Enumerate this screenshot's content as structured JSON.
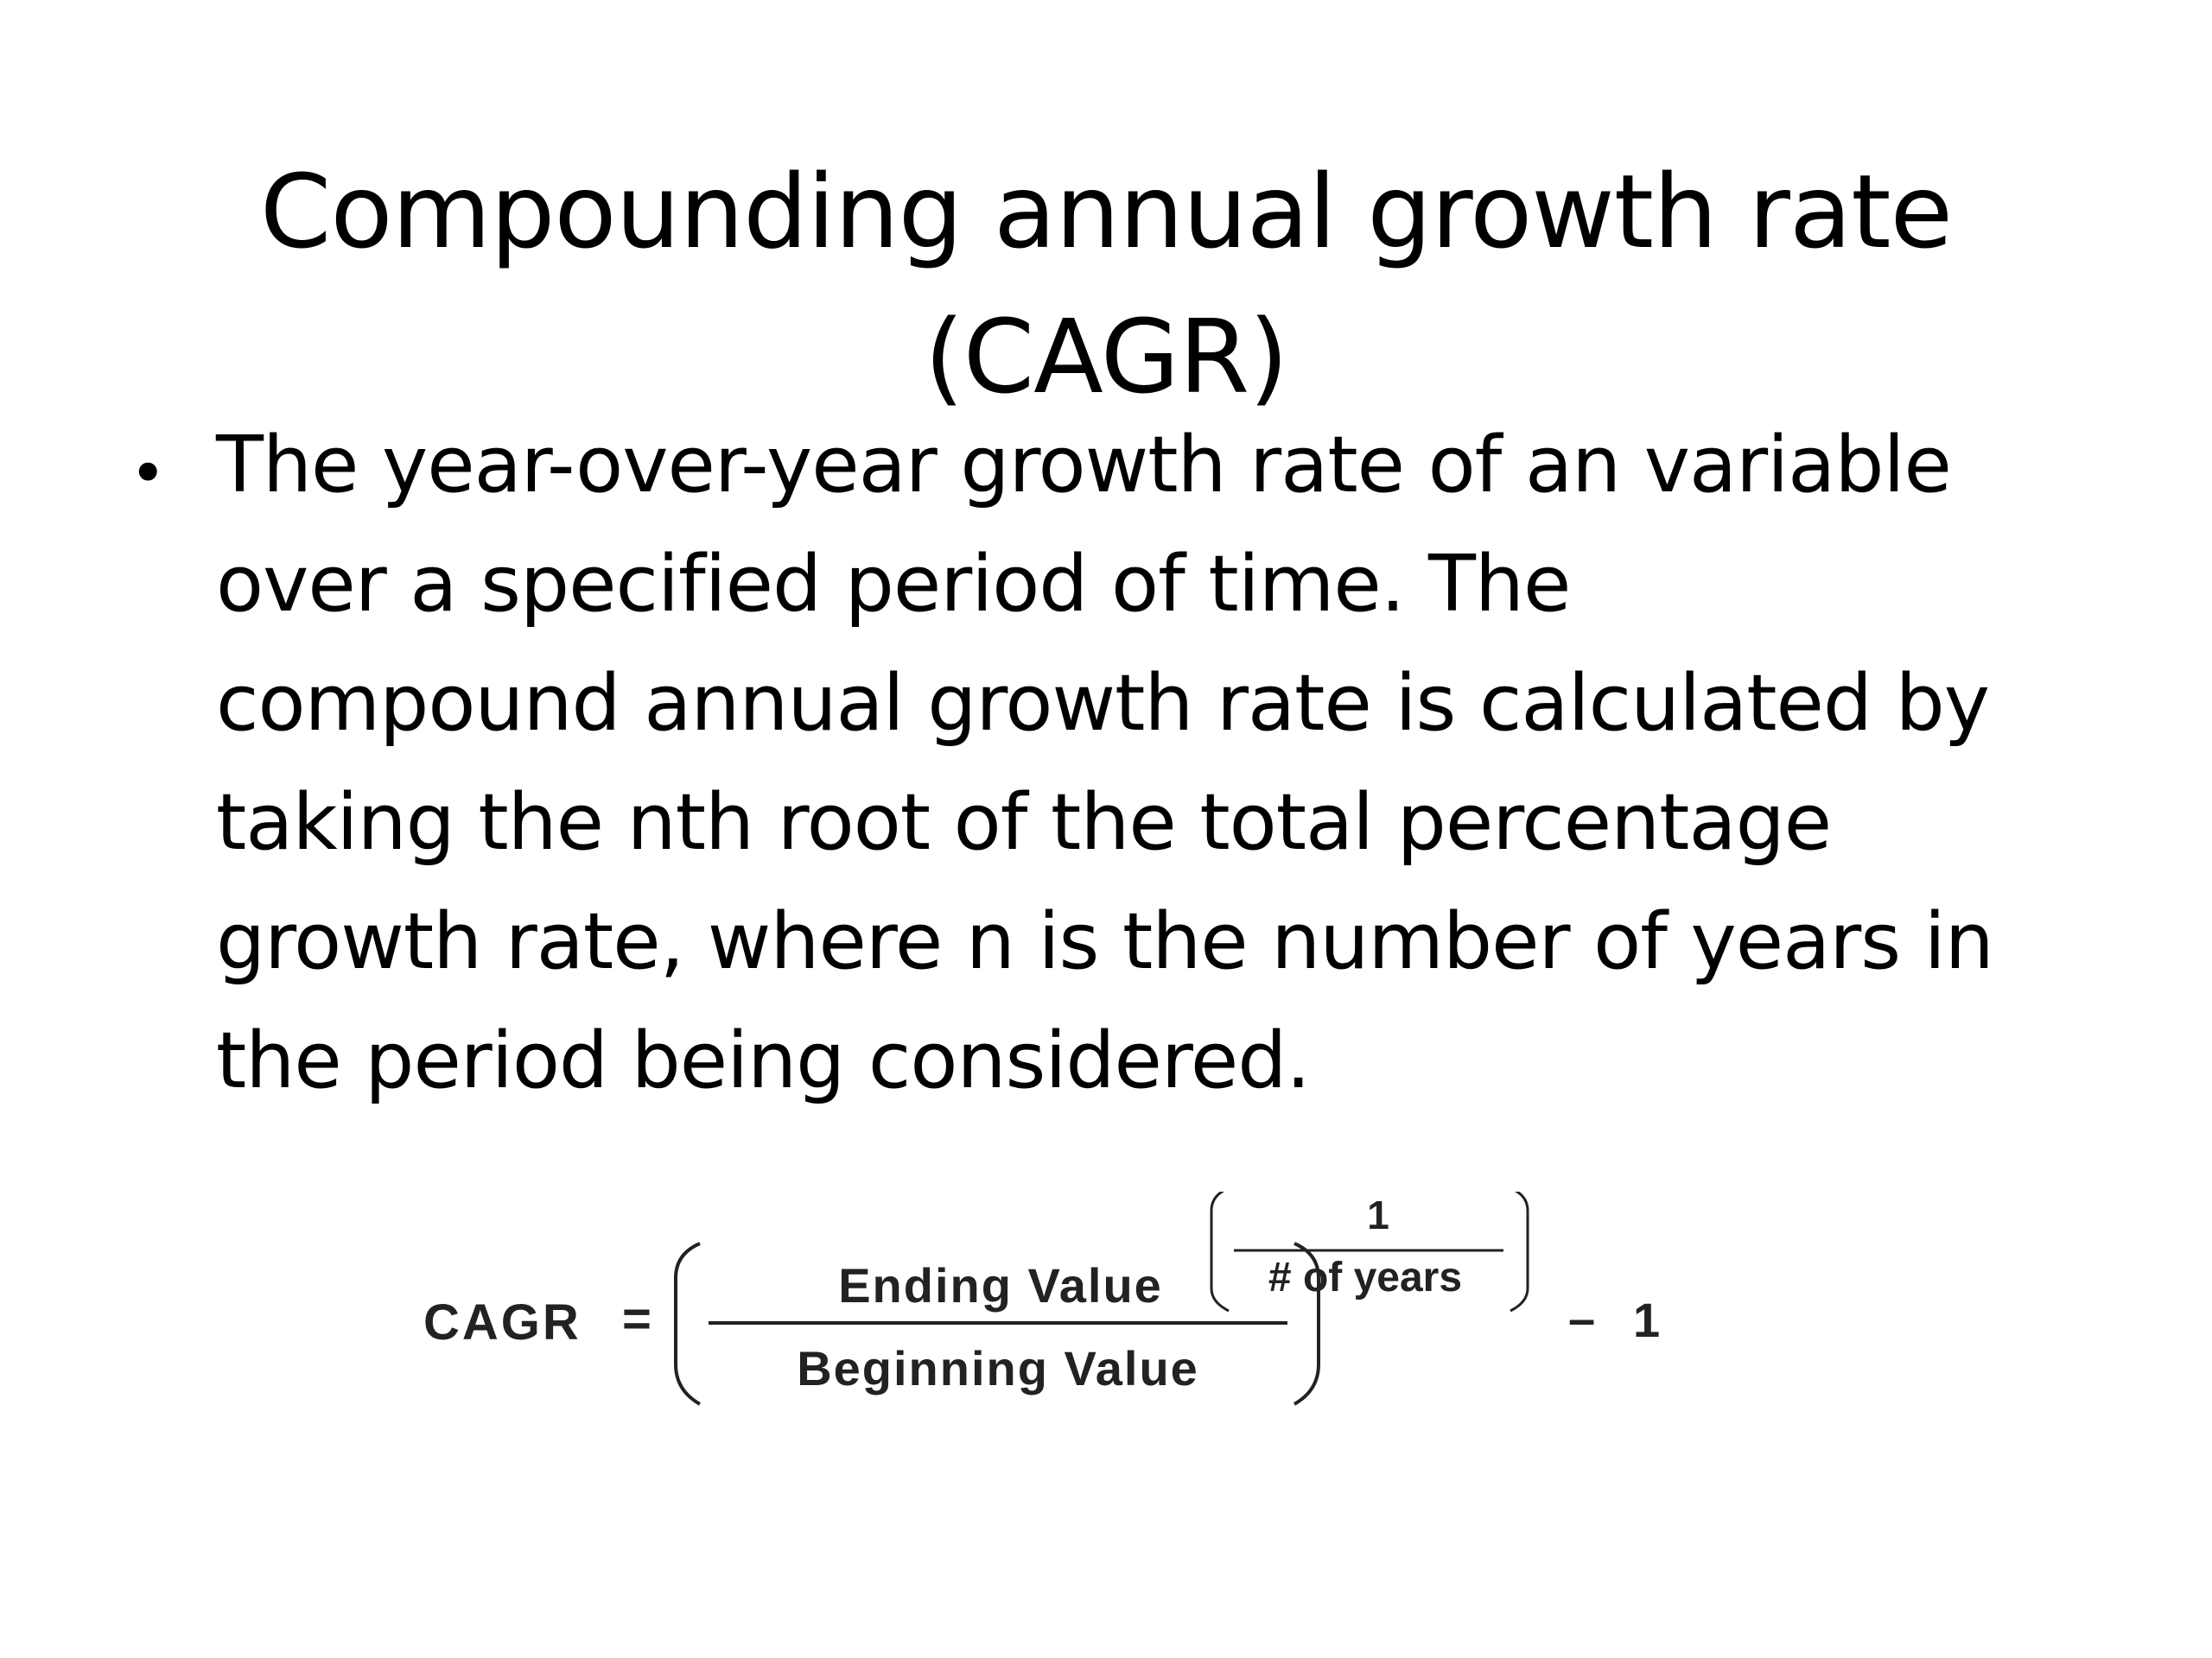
{
  "title": {
    "line1": "Compounding annual growth rate",
    "line2": "(CAGR)"
  },
  "bullet": {
    "marker": "•",
    "lines": [
      "The year-over-year growth rate of an variable",
      "over a specified period of time. The",
      "compound annual growth rate is calculated by",
      "taking the nth root of the total percentage",
      "growth rate, where n is the number of years in",
      "the period being considered."
    ]
  },
  "formula": {
    "lhs": "CAGR",
    "equals": "=",
    "numerator": "Ending Value",
    "denominator": "Beginning Value",
    "exponent_numerator": "1",
    "exponent_denominator": "# of years",
    "minus": "–",
    "constant": "1"
  }
}
